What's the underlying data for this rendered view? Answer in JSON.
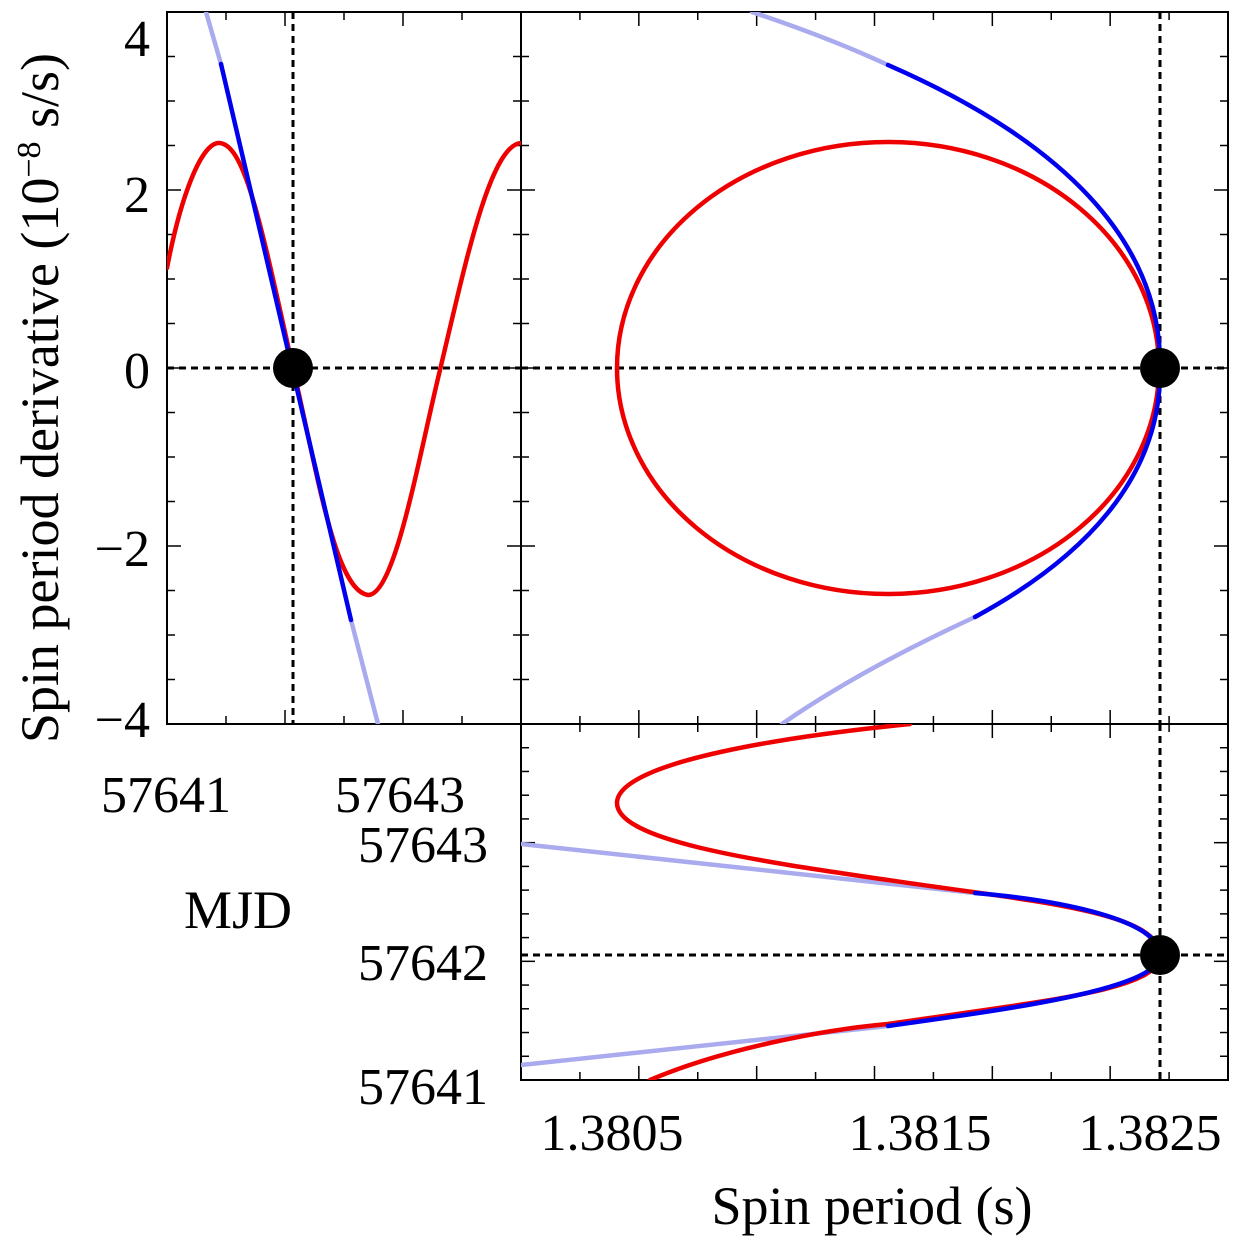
{
  "chart_data": [
    {
      "panel": "top-left",
      "type": "line",
      "xlabel": "",
      "ylabel": "Spin period derivative (10",
      "ylabel_exp": "−8",
      "ylabel_unit": " s/s)",
      "x_ticklabels": [
        "57641",
        "57643"
      ],
      "y_ticklabels": [
        "4",
        "2",
        "0",
        "−2",
        "−4"
      ],
      "xlim": [
        57640.73,
        57643.73
      ],
      "ylim": [
        -4,
        4
      ],
      "reference_point": {
        "x": 57641.8,
        "y": 0
      },
      "series": [
        {
          "color": "#ee0000",
          "kind": "sine model",
          "x": [
            57640.73,
            57641.0,
            57641.3,
            57641.6,
            57641.8,
            57642.0,
            57642.4,
            57642.7,
            57643.0,
            57643.4,
            57643.7
          ],
          "y": [
            1.1,
            2.2,
            2.55,
            1.4,
            0.1,
            -1.3,
            -2.58,
            -1.7,
            0.0,
            2.2,
            2.6
          ]
        },
        {
          "color": "#0000ee",
          "kind": "fit",
          "x": [
            57641.2,
            57642.4
          ],
          "y": [
            3.5,
            -2.85
          ]
        },
        {
          "color": "#aaaaee",
          "kind": "fit extension",
          "x": [
            57641.1,
            57642.55
          ],
          "y": [
            4.0,
            -4.0
          ]
        }
      ]
    },
    {
      "panel": "top-right",
      "type": "line",
      "xlabel": "",
      "ylabel": "",
      "xlim": [
        1.38,
        1.3827
      ],
      "ylim": [
        -4,
        4
      ],
      "reference_point": {
        "x": 1.38255,
        "y": 0
      },
      "series": [
        {
          "color": "#ee0000",
          "kind": "orbit ellipse",
          "center": [
            1.38138,
            0
          ],
          "semi_axes": [
            0.00117,
            2.57
          ]
        },
        {
          "color": "#0000ee",
          "kind": "fit",
          "x": [
            1.38138,
            1.38175,
            1.3822,
            1.38255,
            1.3822,
            1.38175,
            1.38135
          ],
          "y": [
            3.45,
            2.7,
            1.5,
            0.0,
            -1.5,
            -2.7,
            -3.5
          ]
        },
        {
          "color": "#aaaaee",
          "kind": "fit extension",
          "x": [
            1.3807,
            1.38138,
            1.38135,
            1.38087
          ],
          "y": [
            4.0,
            3.45,
            -3.5,
            -4.0
          ]
        }
      ]
    },
    {
      "panel": "bottom-right",
      "type": "line",
      "xlabel": "Spin period (s)",
      "ylabel": "MJD",
      "x_ticklabels": [
        "1.3805",
        "1.3815",
        "1.3825"
      ],
      "y_ticklabels": [
        "57643",
        "57642",
        "57641"
      ],
      "xlim": [
        1.38,
        1.3827
      ],
      "ylim": [
        57640.82,
        57643.82
      ],
      "reference_point": {
        "x": 1.38255,
        "y": 57642.04
      },
      "series": [
        {
          "color": "#ee0000",
          "kind": "period model",
          "x": [
            1.38053,
            1.3815,
            1.38215,
            1.38255,
            1.38215,
            1.3815,
            1.38038,
            1.38148
          ],
          "y": [
            57640.82,
            57641.4,
            57641.75,
            57642.04,
            57642.3,
            57642.7,
            57643.35,
            57643.82
          ]
        },
        {
          "color": "#0000ee",
          "kind": "fit",
          "x": [
            1.38138,
            1.3822,
            1.38255,
            1.3822,
            1.38175
          ],
          "y": [
            57641.5,
            57641.78,
            57642.04,
            57642.3,
            57642.5
          ]
        },
        {
          "color": "#aaaaee",
          "kind": "fit extension",
          "x": [
            1.38,
            1.38138,
            1.38175,
            1.38
          ],
          "y": [
            57641.05,
            57641.5,
            57642.5,
            57643.0
          ]
        }
      ]
    }
  ]
}
